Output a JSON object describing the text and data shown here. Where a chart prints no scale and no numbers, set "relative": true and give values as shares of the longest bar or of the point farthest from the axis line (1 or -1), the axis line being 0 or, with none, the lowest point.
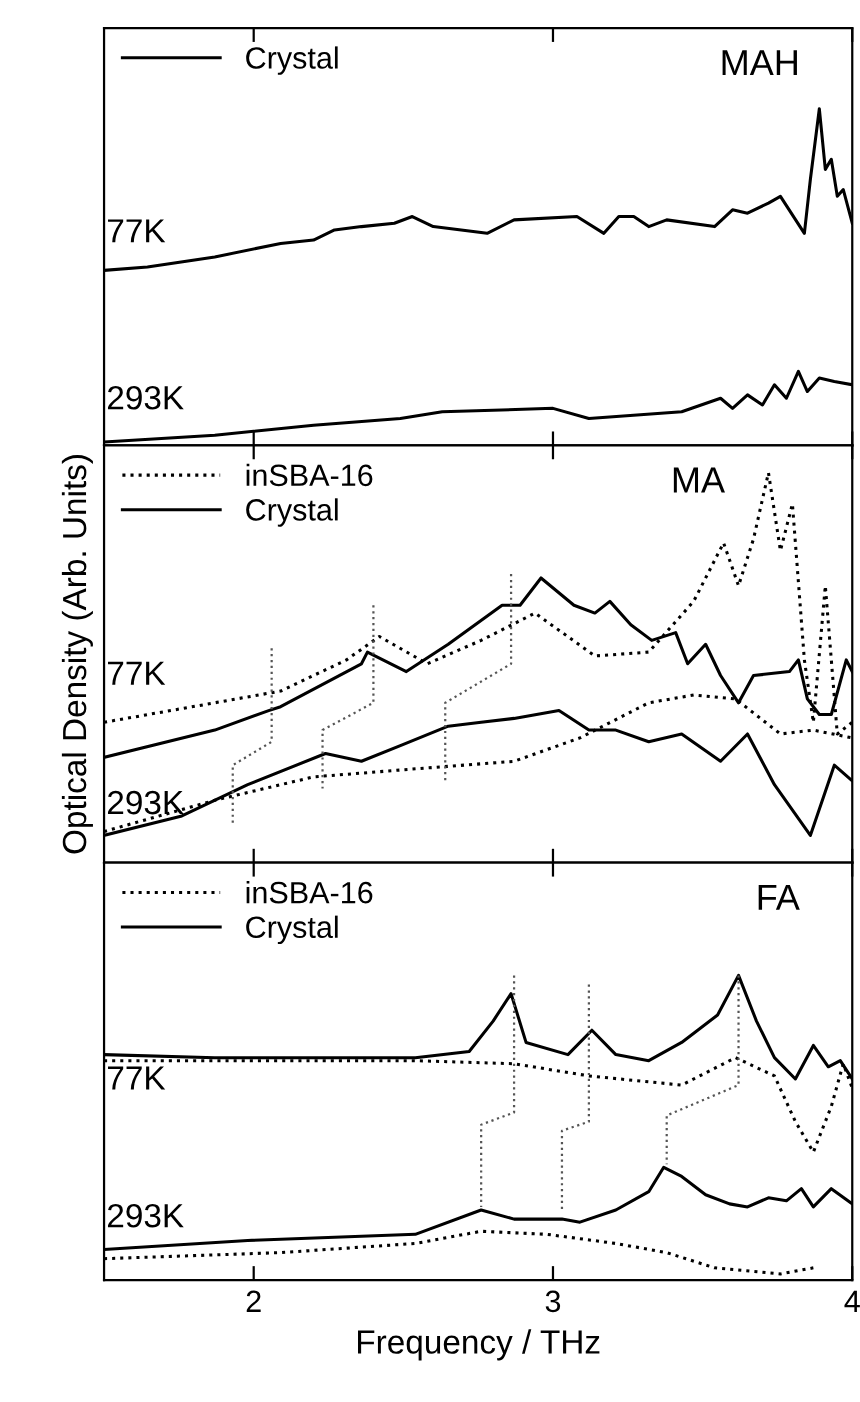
{
  "chart_data": [
    {
      "type": "line",
      "title": "MAH",
      "relative": true,
      "xlim": [
        1.5,
        4
      ],
      "xticks": [
        2,
        3,
        4
      ],
      "tick_labels": false,
      "legend": "top left",
      "annotations": [
        "77K",
        "293K"
      ],
      "series": [
        {
          "name": "Crystal",
          "color": "#000000",
          "line_style": "solid",
          "x": [
            1.5,
            1.645,
            1.87,
            2.09,
            2.2,
            2.27,
            2.36,
            2.47,
            2.53,
            2.6,
            2.78,
            2.87,
            3.08,
            3.17,
            3.22,
            3.27,
            3.32,
            3.38,
            3.54,
            3.6,
            3.65,
            3.72,
            3.76,
            3.84,
            3.86,
            3.89,
            3.91,
            3.93,
            3.95,
            3.97,
            4.0
          ],
          "values": [
            0.52,
            0.53,
            0.56,
            0.6,
            0.61,
            0.64,
            0.65,
            0.66,
            0.68,
            0.65,
            0.63,
            0.67,
            0.68,
            0.63,
            0.68,
            0.68,
            0.65,
            0.67,
            0.65,
            0.7,
            0.69,
            0.72,
            0.74,
            0.63,
            0.79,
            1.0,
            0.82,
            0.85,
            0.74,
            0.76,
            0.66
          ]
        },
        {
          "color": "#000000",
          "line_style": "solid",
          "x": [
            1.5,
            1.87,
            2.2,
            2.49,
            2.63,
            3.0,
            3.12,
            3.43,
            3.56,
            3.6,
            3.65,
            3.7,
            3.74,
            3.78,
            3.82,
            3.85,
            3.89,
            3.94,
            4.0
          ],
          "values": [
            0.01,
            0.03,
            0.06,
            0.08,
            0.1,
            0.11,
            0.08,
            0.1,
            0.14,
            0.11,
            0.15,
            0.12,
            0.18,
            0.14,
            0.22,
            0.16,
            0.2,
            0.19,
            0.18
          ]
        }
      ]
    },
    {
      "type": "line",
      "title": "MA",
      "relative": true,
      "xlim": [
        1.5,
        4
      ],
      "xticks": [
        2,
        3,
        4
      ],
      "tick_labels": false,
      "legend": "top left",
      "ylabel": "Optical Density (Arb. Units)",
      "annotations": [
        "77K",
        "293K"
      ],
      "series": [
        {
          "name": "inSBA-16",
          "color": "#000000",
          "line_style": "dotted",
          "x": [
            1.5,
            1.87,
            2.09,
            2.31,
            2.42,
            2.58,
            2.76,
            2.94,
            3.14,
            3.32,
            3.47,
            3.57,
            3.62,
            3.67,
            3.72,
            3.76,
            3.8,
            3.84,
            3.87,
            3.91,
            3.95,
            4.0
          ],
          "values": [
            0.36,
            0.41,
            0.44,
            0.52,
            0.58,
            0.51,
            0.57,
            0.64,
            0.53,
            0.54,
            0.67,
            0.82,
            0.71,
            0.83,
            1.0,
            0.8,
            0.92,
            0.52,
            0.36,
            0.71,
            0.33,
            0.36
          ]
        },
        {
          "name": "Crystal",
          "color": "#000000",
          "line_style": "solid",
          "x": [
            1.5,
            1.87,
            2.05,
            2.09,
            2.36,
            2.38,
            2.51,
            2.65,
            2.83,
            2.89,
            2.96,
            3.07,
            3.14,
            3.19,
            3.26,
            3.33,
            3.41,
            3.45,
            3.51,
            3.56,
            3.62,
            3.67,
            3.79,
            3.82,
            3.85,
            3.89,
            3.93,
            3.98,
            4.0
          ],
          "values": [
            0.27,
            0.34,
            0.39,
            0.4,
            0.51,
            0.54,
            0.49,
            0.56,
            0.66,
            0.66,
            0.73,
            0.66,
            0.64,
            0.67,
            0.61,
            0.57,
            0.59,
            0.51,
            0.56,
            0.48,
            0.41,
            0.48,
            0.49,
            0.52,
            0.42,
            0.38,
            0.38,
            0.52,
            0.49
          ]
        },
        {
          "color": "#000000",
          "line_style": "dotted",
          "x": [
            1.5,
            1.87,
            2.2,
            2.53,
            2.87,
            3.09,
            3.32,
            3.47,
            3.61,
            3.76,
            3.87,
            4.0
          ],
          "values": [
            0.08,
            0.16,
            0.22,
            0.24,
            0.26,
            0.32,
            0.41,
            0.43,
            0.42,
            0.33,
            0.34,
            0.32
          ]
        },
        {
          "color": "#000000",
          "line_style": "solid",
          "x": [
            1.5,
            1.76,
            1.98,
            2.24,
            2.36,
            2.49,
            2.65,
            2.76,
            2.87,
            3.02,
            3.12,
            3.21,
            3.32,
            3.43,
            3.56,
            3.65,
            3.74,
            3.86,
            3.94,
            4.0
          ],
          "values": [
            0.07,
            0.12,
            0.2,
            0.28,
            0.26,
            0.3,
            0.35,
            0.36,
            0.37,
            0.39,
            0.34,
            0.34,
            0.31,
            0.33,
            0.26,
            0.33,
            0.2,
            0.07,
            0.25,
            0.21
          ]
        },
        {
          "color": "#555555",
          "line_style": "dotted",
          "x": [
            2.06,
            2.06,
            1.93,
            1.93
          ],
          "values": [
            0.55,
            0.31,
            0.25,
            0.1
          ]
        },
        {
          "color": "#555555",
          "line_style": "dotted",
          "x": [
            2.4,
            2.4,
            2.23,
            2.23
          ],
          "values": [
            0.66,
            0.41,
            0.34,
            0.19
          ]
        },
        {
          "color": "#555555",
          "line_style": "dotted",
          "x": [
            2.86,
            2.86,
            2.64,
            2.64
          ],
          "values": [
            0.74,
            0.51,
            0.41,
            0.21
          ]
        }
      ]
    },
    {
      "type": "line",
      "title": "FA",
      "relative": true,
      "xlim": [
        1.5,
        4
      ],
      "xticks": [
        2,
        3,
        4
      ],
      "tick_labels": "x",
      "legend": "top left",
      "xlabel": "Frequency / THz",
      "annotations": [
        "77K",
        "293K"
      ],
      "series": [
        {
          "name": "inSBA-16",
          "color": "#000000",
          "line_style": "dotted",
          "x": [
            1.5,
            2.09,
            2.54,
            2.87,
            3.12,
            3.43,
            3.61,
            3.74,
            3.81,
            3.87,
            3.93,
            3.97,
            4.0
          ],
          "values": [
            0.72,
            0.72,
            0.72,
            0.71,
            0.67,
            0.64,
            0.73,
            0.67,
            0.52,
            0.42,
            0.57,
            0.71,
            0.63
          ]
        },
        {
          "name": "Crystal",
          "color": "#000000",
          "line_style": "solid",
          "x": [
            1.5,
            1.87,
            2.54,
            2.72,
            2.8,
            2.86,
            2.91,
            3.05,
            3.13,
            3.21,
            3.32,
            3.43,
            3.55,
            3.62,
            3.68,
            3.74,
            3.81,
            3.87,
            3.92,
            3.96,
            4.0
          ],
          "values": [
            0.74,
            0.73,
            0.73,
            0.75,
            0.85,
            0.94,
            0.78,
            0.74,
            0.82,
            0.74,
            0.72,
            0.78,
            0.87,
            1.0,
            0.85,
            0.73,
            0.66,
            0.77,
            0.7,
            0.72,
            0.66
          ]
        },
        {
          "color": "#000000",
          "line_style": "dotted",
          "x": [
            1.5,
            2.09,
            2.54,
            2.76,
            2.98,
            3.21,
            3.38,
            3.54,
            3.76,
            3.87
          ],
          "values": [
            0.07,
            0.09,
            0.12,
            0.16,
            0.15,
            0.12,
            0.09,
            0.04,
            0.02,
            0.04
          ]
        },
        {
          "color": "#000000",
          "line_style": "solid",
          "x": [
            1.5,
            1.98,
            2.54,
            2.76,
            2.87,
            3.03,
            3.09,
            3.21,
            3.32,
            3.37,
            3.43,
            3.51,
            3.59,
            3.65,
            3.72,
            3.78,
            3.83,
            3.87,
            3.93,
            4.0
          ],
          "values": [
            0.1,
            0.13,
            0.15,
            0.23,
            0.2,
            0.2,
            0.19,
            0.23,
            0.29,
            0.37,
            0.34,
            0.28,
            0.25,
            0.24,
            0.27,
            0.26,
            0.3,
            0.24,
            0.3,
            0.25
          ]
        },
        {
          "color": "#555555",
          "line_style": "dotted",
          "x": [
            2.87,
            2.87,
            2.76,
            2.76
          ],
          "values": [
            1.0,
            0.55,
            0.51,
            0.24
          ]
        },
        {
          "color": "#555555",
          "line_style": "dotted",
          "x": [
            3.12,
            3.12,
            3.03,
            3.03
          ],
          "values": [
            0.97,
            0.52,
            0.49,
            0.23
          ]
        },
        {
          "color": "#555555",
          "line_style": "dotted",
          "x": [
            3.62,
            3.62,
            3.38,
            3.38
          ],
          "values": [
            1.0,
            0.64,
            0.54,
            0.38
          ]
        }
      ]
    }
  ]
}
